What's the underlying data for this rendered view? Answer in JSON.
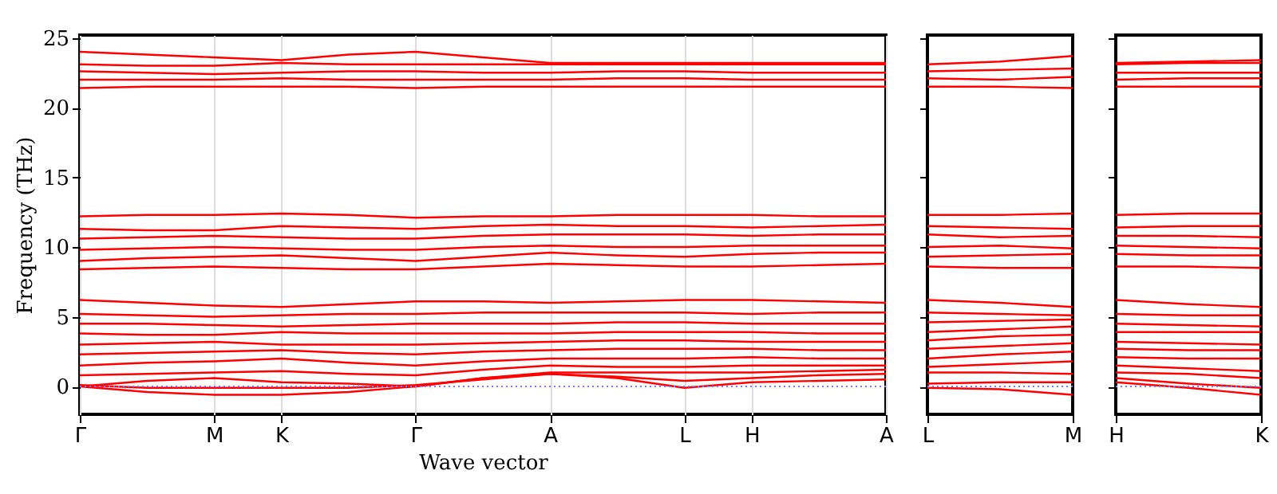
{
  "chart_data": [
    {
      "type": "line",
      "xlabel": "Wave vector",
      "ylabel": "Frequency (THz)",
      "categories": [
        "Γ",
        null,
        "M",
        "K",
        null,
        "Γ",
        null,
        "A",
        null,
        "L",
        "H",
        null,
        "A"
      ],
      "ylim": [
        -2,
        25.2
      ],
      "yticks": [
        0,
        5,
        10,
        15,
        20,
        25
      ],
      "grid": "x",
      "line_style": "solid",
      "ref_lines": [
        {
          "axis": "y",
          "value": 0,
          "color": "#7777ff",
          "line_style": "dotted"
        }
      ],
      "series": [
        {
          "color": "#ff0000",
          "values": [
            0,
            -0.4,
            -0.6,
            -0.6,
            -0.4,
            0,
            0.6,
            0.9,
            0.6,
            -0.1,
            0.3,
            0.4,
            0.5
          ]
        },
        {
          "color": "#ff0000",
          "values": [
            0.1,
            -0.1,
            -0.1,
            -0.1,
            -0.1,
            0.1,
            0.5,
            0.9,
            0.7,
            0.4,
            0.6,
            0.8,
            0.9
          ]
        },
        {
          "color": "#ff0000",
          "values": [
            0,
            0.4,
            0.6,
            0.3,
            0.2,
            0,
            0.6,
            1.0,
            1.0,
            1.0,
            1.0,
            1.1,
            1.2
          ]
        },
        {
          "color": "#ff0000",
          "values": [
            0.8,
            0.9,
            1.0,
            1.1,
            0.9,
            0.8,
            1.2,
            1.5,
            1.4,
            1.4,
            1.5,
            1.5,
            1.5
          ]
        },
        {
          "color": "#ff0000",
          "values": [
            1.5,
            1.7,
            1.8,
            2.0,
            1.7,
            1.5,
            1.8,
            2.0,
            2.0,
            2.0,
            2.1,
            2.0,
            2.0
          ]
        },
        {
          "color": "#ff0000",
          "values": [
            2.3,
            2.4,
            2.5,
            2.6,
            2.4,
            2.3,
            2.5,
            2.6,
            2.7,
            2.7,
            2.7,
            2.6,
            2.6
          ]
        },
        {
          "color": "#ff0000",
          "values": [
            3.0,
            3.1,
            3.2,
            3.0,
            3.0,
            3.0,
            3.1,
            3.2,
            3.3,
            3.3,
            3.2,
            3.2,
            3.2
          ]
        },
        {
          "color": "#ff0000",
          "values": [
            3.8,
            3.7,
            3.7,
            3.9,
            3.8,
            3.8,
            3.8,
            3.8,
            3.9,
            3.9,
            3.9,
            3.8,
            3.8
          ]
        },
        {
          "color": "#ff0000",
          "values": [
            4.5,
            4.5,
            4.4,
            4.3,
            4.4,
            4.5,
            4.5,
            4.5,
            4.6,
            4.6,
            4.5,
            4.5,
            4.5
          ]
        },
        {
          "color": "#ff0000",
          "values": [
            5.2,
            5.1,
            5.0,
            5.1,
            5.2,
            5.2,
            5.3,
            5.3,
            5.3,
            5.3,
            5.2,
            5.3,
            5.3
          ]
        },
        {
          "color": "#ff0000",
          "values": [
            6.2,
            6.0,
            5.8,
            5.7,
            5.9,
            6.1,
            6.1,
            6.0,
            6.1,
            6.2,
            6.2,
            6.1,
            6.0
          ]
        },
        {
          "color": "#ff0000",
          "values": [
            8.4,
            8.5,
            8.6,
            8.5,
            8.4,
            8.4,
            8.6,
            8.8,
            8.7,
            8.6,
            8.6,
            8.7,
            8.8
          ]
        },
        {
          "color": "#ff0000",
          "values": [
            9.0,
            9.2,
            9.3,
            9.4,
            9.2,
            9.0,
            9.3,
            9.6,
            9.4,
            9.3,
            9.5,
            9.6,
            9.6
          ]
        },
        {
          "color": "#ff0000",
          "values": [
            9.8,
            9.9,
            10.0,
            9.9,
            9.8,
            9.8,
            10.0,
            10.1,
            10.0,
            10.0,
            10.1,
            10.1,
            10.1
          ]
        },
        {
          "color": "#ff0000",
          "values": [
            10.6,
            10.7,
            10.8,
            10.7,
            10.6,
            10.6,
            10.8,
            10.9,
            10.9,
            10.9,
            10.8,
            10.9,
            10.9
          ]
        },
        {
          "color": "#ff0000",
          "values": [
            11.3,
            11.2,
            11.2,
            11.5,
            11.4,
            11.3,
            11.5,
            11.6,
            11.5,
            11.5,
            11.4,
            11.5,
            11.6
          ]
        },
        {
          "color": "#ff0000",
          "values": [
            12.2,
            12.3,
            12.3,
            12.4,
            12.3,
            12.1,
            12.2,
            12.2,
            12.3,
            12.3,
            12.3,
            12.2,
            12.2
          ]
        },
        {
          "color": "#ff0000",
          "values": [
            21.4,
            21.5,
            21.5,
            21.5,
            21.5,
            21.4,
            21.5,
            21.5,
            21.5,
            21.5,
            21.5,
            21.5,
            21.5
          ]
        },
        {
          "color": "#ff0000",
          "values": [
            22.0,
            22.0,
            22.0,
            22.1,
            22.0,
            22.0,
            22.0,
            22.0,
            22.1,
            22.1,
            22.0,
            22.0,
            22.0
          ]
        },
        {
          "color": "#ff0000",
          "values": [
            22.6,
            22.5,
            22.4,
            22.5,
            22.6,
            22.6,
            22.5,
            22.5,
            22.6,
            22.6,
            22.5,
            22.5,
            22.5
          ]
        },
        {
          "color": "#ff0000",
          "values": [
            23.1,
            23.0,
            23.0,
            23.2,
            23.1,
            23.1,
            23.1,
            23.1,
            23.1,
            23.1,
            23.1,
            23.1,
            23.1
          ]
        },
        {
          "color": "#ff0000",
          "values": [
            24.0,
            23.8,
            23.6,
            23.4,
            23.8,
            24.0,
            23.6,
            23.2,
            23.2,
            23.2,
            23.2,
            23.2,
            23.2
          ]
        }
      ]
    },
    {
      "type": "line",
      "categories": [
        "L",
        null,
        "M"
      ],
      "ylim": [
        -2,
        25.2
      ],
      "yticks": [
        0,
        5,
        10,
        15,
        20,
        25
      ],
      "line_style": "solid",
      "tick_labels": "x",
      "ref_lines": [
        {
          "axis": "y",
          "value": 0,
          "color": "#7777ff",
          "line_style": "dotted"
        }
      ],
      "series": [
        {
          "color": "#ff0000",
          "values": [
            -0.1,
            -0.2,
            -0.6
          ]
        },
        {
          "color": "#ff0000",
          "values": [
            0.2,
            0.3,
            0.3
          ]
        },
        {
          "color": "#ff0000",
          "values": [
            1.0,
            1.0,
            0.9
          ]
        },
        {
          "color": "#ff0000",
          "values": [
            1.4,
            1.6,
            1.8
          ]
        },
        {
          "color": "#ff0000",
          "values": [
            2.0,
            2.3,
            2.5
          ]
        },
        {
          "color": "#ff0000",
          "values": [
            2.7,
            2.9,
            3.1
          ]
        },
        {
          "color": "#ff0000",
          "values": [
            3.3,
            3.6,
            3.7
          ]
        },
        {
          "color": "#ff0000",
          "values": [
            3.9,
            4.1,
            4.3
          ]
        },
        {
          "color": "#ff0000",
          "values": [
            4.6,
            4.7,
            4.8
          ]
        },
        {
          "color": "#ff0000",
          "values": [
            5.3,
            5.2,
            5.1
          ]
        },
        {
          "color": "#ff0000",
          "values": [
            6.2,
            6.0,
            5.7
          ]
        },
        {
          "color": "#ff0000",
          "values": [
            8.6,
            8.5,
            8.5
          ]
        },
        {
          "color": "#ff0000",
          "values": [
            9.3,
            9.4,
            9.5
          ]
        },
        {
          "color": "#ff0000",
          "values": [
            10.0,
            10.1,
            9.9
          ]
        },
        {
          "color": "#ff0000",
          "values": [
            10.9,
            10.7,
            10.8
          ]
        },
        {
          "color": "#ff0000",
          "values": [
            11.5,
            11.4,
            11.3
          ]
        },
        {
          "color": "#ff0000",
          "values": [
            12.3,
            12.3,
            12.4
          ]
        },
        {
          "color": "#ff0000",
          "values": [
            21.5,
            21.5,
            21.4
          ]
        },
        {
          "color": "#ff0000",
          "values": [
            22.1,
            22.0,
            22.2
          ]
        },
        {
          "color": "#ff0000",
          "values": [
            22.6,
            22.7,
            22.8
          ]
        },
        {
          "color": "#ff0000",
          "values": [
            23.1,
            23.3,
            23.7
          ]
        }
      ]
    },
    {
      "type": "line",
      "categories": [
        "H",
        null,
        "K"
      ],
      "ylim": [
        -2,
        25.2
      ],
      "yticks": [
        0,
        5,
        10,
        15,
        20,
        25
      ],
      "line_style": "solid",
      "tick_labels": "x",
      "ref_lines": [
        {
          "axis": "y",
          "value": 0,
          "color": "#7777ff",
          "line_style": "dotted"
        }
      ],
      "series": [
        {
          "color": "#ff0000",
          "values": [
            0.3,
            -0.1,
            -0.6
          ]
        },
        {
          "color": "#ff0000",
          "values": [
            0.6,
            0.2,
            -0.1
          ]
        },
        {
          "color": "#ff0000",
          "values": [
            1.0,
            0.9,
            0.6
          ]
        },
        {
          "color": "#ff0000",
          "values": [
            1.5,
            1.3,
            1.1
          ]
        },
        {
          "color": "#ff0000",
          "values": [
            2.1,
            2.0,
            2.0
          ]
        },
        {
          "color": "#ff0000",
          "values": [
            2.7,
            2.6,
            2.6
          ]
        },
        {
          "color": "#ff0000",
          "values": [
            3.2,
            3.1,
            3.0
          ]
        },
        {
          "color": "#ff0000",
          "values": [
            3.9,
            3.9,
            3.9
          ]
        },
        {
          "color": "#ff0000",
          "values": [
            4.5,
            4.4,
            4.3
          ]
        },
        {
          "color": "#ff0000",
          "values": [
            5.2,
            5.1,
            5.1
          ]
        },
        {
          "color": "#ff0000",
          "values": [
            6.2,
            5.9,
            5.7
          ]
        },
        {
          "color": "#ff0000",
          "values": [
            8.6,
            8.6,
            8.5
          ]
        },
        {
          "color": "#ff0000",
          "values": [
            9.5,
            9.4,
            9.4
          ]
        },
        {
          "color": "#ff0000",
          "values": [
            10.1,
            10.0,
            9.9
          ]
        },
        {
          "color": "#ff0000",
          "values": [
            10.8,
            10.8,
            10.7
          ]
        },
        {
          "color": "#ff0000",
          "values": [
            11.4,
            11.5,
            11.5
          ]
        },
        {
          "color": "#ff0000",
          "values": [
            12.3,
            12.4,
            12.4
          ]
        },
        {
          "color": "#ff0000",
          "values": [
            21.5,
            21.5,
            21.5
          ]
        },
        {
          "color": "#ff0000",
          "values": [
            22.0,
            22.1,
            22.1
          ]
        },
        {
          "color": "#ff0000",
          "values": [
            22.5,
            22.5,
            22.5
          ]
        },
        {
          "color": "#ff0000",
          "values": [
            23.1,
            23.2,
            23.2
          ]
        },
        {
          "color": "#ff0000",
          "values": [
            23.2,
            23.3,
            23.4
          ]
        }
      ]
    }
  ]
}
